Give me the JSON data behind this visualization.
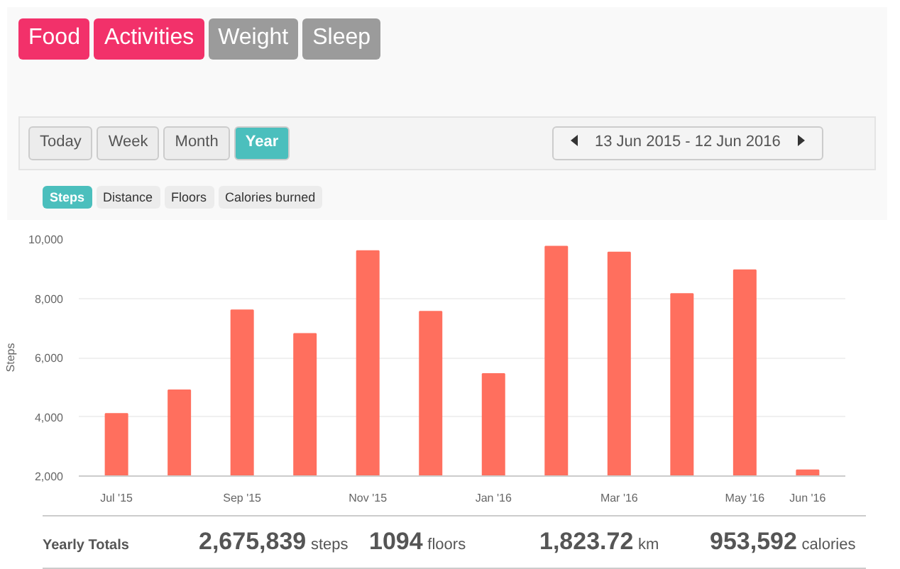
{
  "chart_data": {
    "type": "bar",
    "ylabel": "Steps",
    "categories": [
      "Jul '15",
      null,
      "Sep '15",
      null,
      "Nov '15",
      null,
      "Jan '16",
      null,
      "Mar '16",
      null,
      "May '16",
      "Jun '16"
    ],
    "values": [
      4100,
      4900,
      7600,
      6800,
      9600,
      7550,
      5450,
      9750,
      9550,
      8150,
      8950,
      2200
    ],
    "color": "#ff6f5e",
    "ylim": [
      2000,
      10000
    ],
    "yticks": [
      {
        "value": 2000,
        "label": "2,000"
      },
      {
        "value": 4000,
        "label": "4,000"
      },
      {
        "value": 6000,
        "label": "6,000"
      },
      {
        "value": 8000,
        "label": "8,000"
      },
      {
        "value": 10000,
        "label": "10,000"
      }
    ],
    "grid": "y",
    "annotations": [
      "Food",
      "Activities",
      "Weight",
      "Sleep",
      "Today",
      "Week",
      "Month",
      "Year",
      "13 Jun 2015 - 12 Jun 2016",
      "Steps",
      "Distance",
      "Floors",
      "Calories burned",
      "Yearly Totals",
      "2,675,839 steps",
      "1094 floors",
      "1,823.72 km",
      "953,592 calories"
    ]
  }
}
